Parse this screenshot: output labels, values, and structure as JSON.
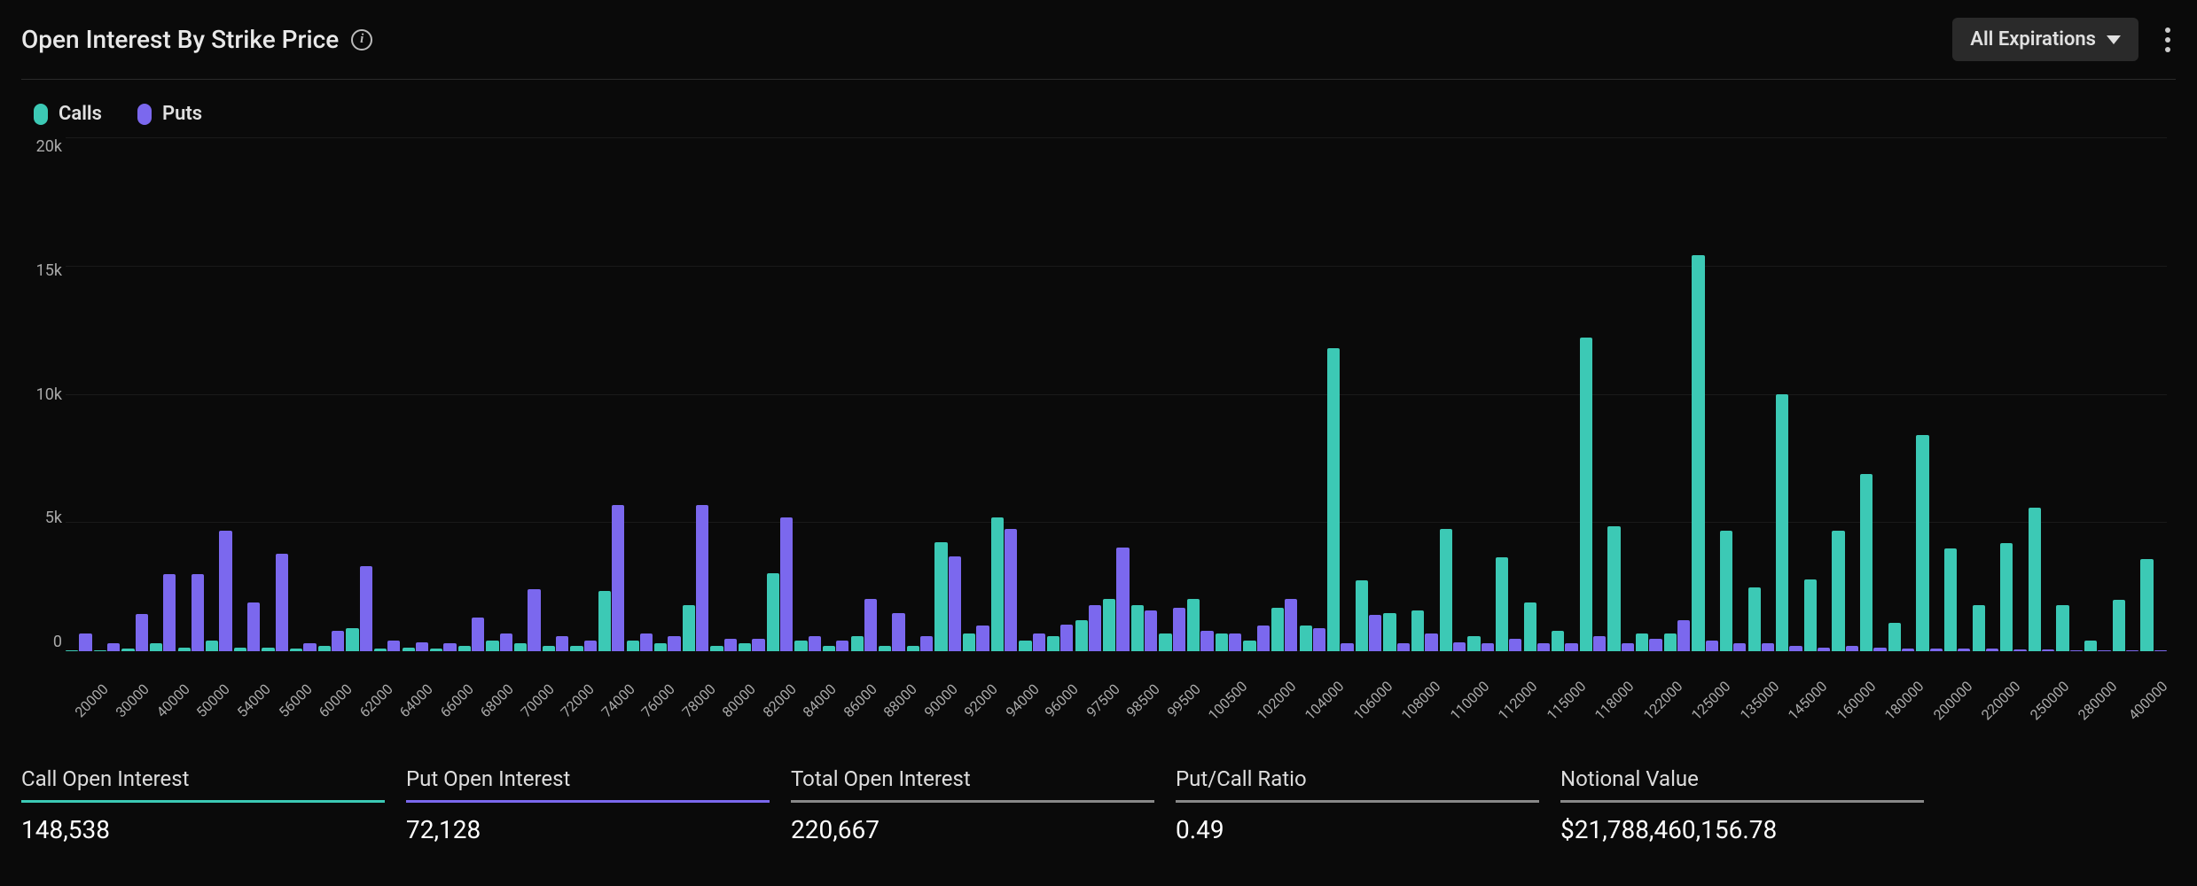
{
  "header": {
    "title": "Open Interest By Strike Price",
    "dropdown_label": "All Expirations"
  },
  "legend": {
    "calls": {
      "label": "Calls",
      "color": "#3cc9b5"
    },
    "puts": {
      "label": "Puts",
      "color": "#7b68ee"
    }
  },
  "chart": {
    "type": "grouped-bar",
    "y_max": 20000,
    "y_ticks": [
      "20k",
      "15k",
      "10k",
      "5k",
      "0"
    ],
    "background_color": "#0a0a0a",
    "grid_color": "#1a1a1a",
    "axis_label_color": "#aaaaaa",
    "axis_fontsize": 18,
    "bar_colors": {
      "calls": "#3cc9b5",
      "puts": "#7b68ee"
    },
    "categories": [
      "20000",
      "30000",
      "40000",
      "50000",
      "54000",
      "56000",
      "60000",
      "62000",
      "64000",
      "66000",
      "68000",
      "70000",
      "72000",
      "74000",
      "76000",
      "78000",
      "80000",
      "82000",
      "84000",
      "86000",
      "88000",
      "90000",
      "92000",
      "94000",
      "96000",
      "97500",
      "98500",
      "99500",
      "100500",
      "102000",
      "104000",
      "106000",
      "108000",
      "110000",
      "112000",
      "115000",
      "118000",
      "122000",
      "125000",
      "135000",
      "145000",
      "160000",
      "180000",
      "200000",
      "220000",
      "250000",
      "280000",
      "400000"
    ],
    "series": {
      "calls": [
        50,
        100,
        150,
        400,
        150,
        200,
        900,
        150,
        100,
        400,
        300,
        200,
        2350,
        300,
        1800,
        300,
        3050,
        200,
        600,
        200,
        4250,
        5200,
        400,
        1200,
        2050,
        700,
        2050,
        400,
        1700,
        11800,
        2750,
        1600,
        4750,
        3650,
        1900,
        12200,
        4850,
        700,
        15400,
        2500,
        10000,
        4700,
        6900,
        8400,
        4000,
        4200,
        5600,
        2000
      ],
      "puts": [
        700,
        1450,
        3000,
        4700,
        3800,
        800,
        3300,
        350,
        300,
        700,
        2400,
        400,
        5700,
        600,
        5700,
        500,
        5200,
        400,
        2050,
        600,
        3700,
        4750,
        700,
        1800,
        4050,
        1700,
        800,
        1000,
        2050,
        300,
        1400,
        700,
        350,
        500,
        300,
        600,
        300,
        1200,
        400,
        300,
        200,
        200,
        150,
        100,
        100,
        80,
        60,
        50
      ]
    },
    "hidden_pairs": [
      {
        "after_index": 0,
        "calls": 50,
        "puts": 300
      },
      {
        "after_index": 1,
        "calls": 300,
        "puts": 3000
      },
      {
        "after_index": 3,
        "calls": 150,
        "puts": 1900
      },
      {
        "after_index": 4,
        "calls": 100,
        "puts": 300
      },
      {
        "after_index": 6,
        "calls": 100,
        "puts": 400
      },
      {
        "after_index": 8,
        "calls": 200,
        "puts": 1300
      },
      {
        "after_index": 10,
        "calls": 200,
        "puts": 600
      },
      {
        "after_index": 12,
        "calls": 400,
        "puts": 700
      },
      {
        "after_index": 14,
        "calls": 200,
        "puts": 500
      },
      {
        "after_index": 16,
        "calls": 400,
        "puts": 600
      },
      {
        "after_index": 18,
        "calls": 200,
        "puts": 1500
      },
      {
        "after_index": 20,
        "calls": 700,
        "puts": 1000
      },
      {
        "after_index": 22,
        "calls": 600,
        "puts": 1050
      },
      {
        "after_index": 24,
        "calls": 1800,
        "puts": 1600
      },
      {
        "after_index": 26,
        "calls": 700,
        "puts": 700
      },
      {
        "after_index": 28,
        "calls": 1000,
        "puts": 900
      },
      {
        "after_index": 30,
        "calls": 1500,
        "puts": 300
      },
      {
        "after_index": 32,
        "calls": 600,
        "puts": 300
      },
      {
        "after_index": 34,
        "calls": 800,
        "puts": 300
      },
      {
        "after_index": 36,
        "calls": 700,
        "puts": 500
      },
      {
        "after_index": 38,
        "calls": 4700,
        "puts": 300
      },
      {
        "after_index": 40,
        "calls": 2800,
        "puts": 150
      },
      {
        "after_index": 42,
        "calls": 1100,
        "puts": 100
      },
      {
        "after_index": 44,
        "calls": 1800,
        "puts": 100
      },
      {
        "after_index": 46,
        "calls": 1800,
        "puts": 50
      },
      {
        "after_index": 46,
        "calls": 400,
        "puts": 50
      },
      {
        "after_index": 47,
        "calls": 3600,
        "puts": 50
      }
    ]
  },
  "stats": [
    {
      "label": "Call Open Interest",
      "value": "148,538",
      "underline": "#3cc9b5"
    },
    {
      "label": "Put Open Interest",
      "value": "72,128",
      "underline": "#7b68ee"
    },
    {
      "label": "Total Open Interest",
      "value": "220,667",
      "underline": "#888888"
    },
    {
      "label": "Put/Call Ratio",
      "value": "0.49",
      "underline": "#888888"
    },
    {
      "label": "Notional Value",
      "value": "$21,788,460,156.78",
      "underline": "#888888"
    }
  ]
}
